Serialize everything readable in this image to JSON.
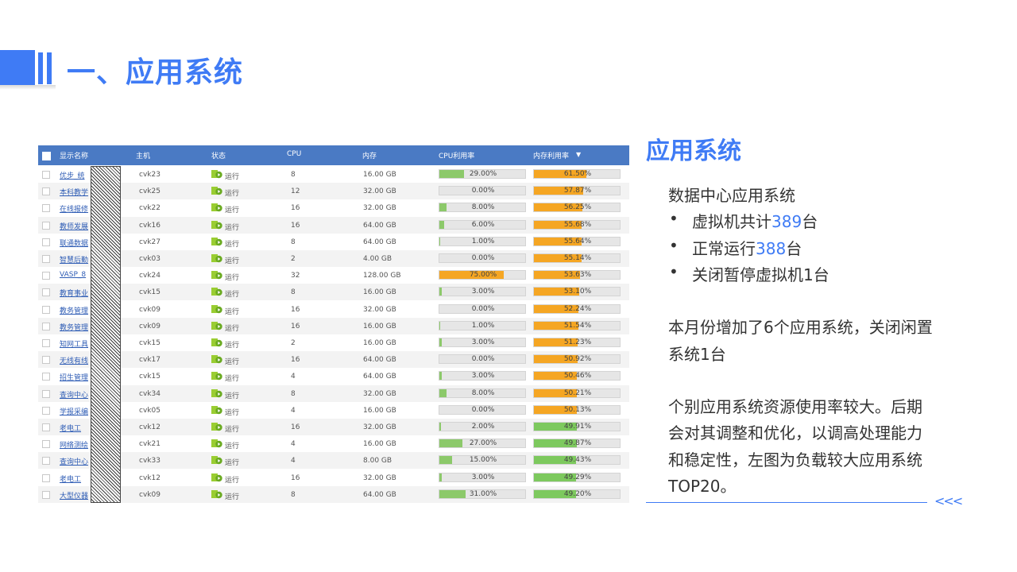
{
  "header": {
    "title": "一、应用系统"
  },
  "table": {
    "columns": [
      "显示名称",
      "主机",
      "状态",
      "CPU",
      "内存",
      "CPU利用率",
      "内存利用率"
    ],
    "rows": [
      {
        "name": "优步_统",
        "host": "cvk23",
        "status": "运行",
        "cpu": "8",
        "mem": "16.00 GB",
        "cpu_pct": 29,
        "cpu_label": "29.00%",
        "mem_pct": 61.5,
        "mem_label": "61.50%"
      },
      {
        "name": "本科教学",
        "host": "cvk25",
        "status": "运行",
        "cpu": "12",
        "mem": "32.00 GB",
        "cpu_pct": 0,
        "cpu_label": "0.00%",
        "mem_pct": 57.87,
        "mem_label": "57.87%"
      },
      {
        "name": "在线报修",
        "host": "cvk22",
        "status": "运行",
        "cpu": "16",
        "mem": "32.00 GB",
        "cpu_pct": 8,
        "cpu_label": "8.00%",
        "mem_pct": 56.25,
        "mem_label": "56.25%"
      },
      {
        "name": "教师发展",
        "host": "cvk16",
        "status": "运行",
        "cpu": "16",
        "mem": "64.00 GB",
        "cpu_pct": 6,
        "cpu_label": "6.00%",
        "mem_pct": 55.68,
        "mem_label": "55.68%"
      },
      {
        "name": "联通数据",
        "host": "cvk27",
        "status": "运行",
        "cpu": "8",
        "mem": "64.00 GB",
        "cpu_pct": 1,
        "cpu_label": "1.00%",
        "mem_pct": 55.64,
        "mem_label": "55.64%"
      },
      {
        "name": "智慧后勤",
        "host": "cvk03",
        "status": "运行",
        "cpu": "2",
        "mem": "4.00 GB",
        "cpu_pct": 0,
        "cpu_label": "0.00%",
        "mem_pct": 55.14,
        "mem_label": "55.14%"
      },
      {
        "name": "VASP_8",
        "host": "cvk24",
        "status": "运行",
        "cpu": "32",
        "mem": "128.00 GB",
        "cpu_pct": 75,
        "cpu_label": "75.00%",
        "mem_pct": 53.63,
        "mem_label": "53.63%"
      },
      {
        "name": "教育事业",
        "host": "cvk15",
        "status": "运行",
        "cpu": "8",
        "mem": "16.00 GB",
        "cpu_pct": 3,
        "cpu_label": "3.00%",
        "mem_pct": 53.1,
        "mem_label": "53.10%"
      },
      {
        "name": "教务管理",
        "host": "cvk09",
        "status": "运行",
        "cpu": "16",
        "mem": "32.00 GB",
        "cpu_pct": 0,
        "cpu_label": "0.00%",
        "mem_pct": 52.24,
        "mem_label": "52.24%"
      },
      {
        "name": "教务管理",
        "host": "cvk09",
        "status": "运行",
        "cpu": "16",
        "mem": "16.00 GB",
        "cpu_pct": 1,
        "cpu_label": "1.00%",
        "mem_pct": 51.54,
        "mem_label": "51.54%"
      },
      {
        "name": "知网工具",
        "host": "cvk15",
        "status": "运行",
        "cpu": "2",
        "mem": "16.00 GB",
        "cpu_pct": 3,
        "cpu_label": "3.00%",
        "mem_pct": 51.23,
        "mem_label": "51.23%"
      },
      {
        "name": "无线有线",
        "host": "cvk17",
        "status": "运行",
        "cpu": "16",
        "mem": "64.00 GB",
        "cpu_pct": 0,
        "cpu_label": "0.00%",
        "mem_pct": 50.92,
        "mem_label": "50.92%"
      },
      {
        "name": "招生管理",
        "host": "cvk15",
        "status": "运行",
        "cpu": "4",
        "mem": "64.00 GB",
        "cpu_pct": 3,
        "cpu_label": "3.00%",
        "mem_pct": 50.46,
        "mem_label": "50.46%"
      },
      {
        "name": "查询中心",
        "host": "cvk34",
        "status": "运行",
        "cpu": "8",
        "mem": "32.00 GB",
        "cpu_pct": 8,
        "cpu_label": "8.00%",
        "mem_pct": 50.21,
        "mem_label": "50.21%"
      },
      {
        "name": "学报采编",
        "host": "cvk05",
        "status": "运行",
        "cpu": "4",
        "mem": "16.00 GB",
        "cpu_pct": 0,
        "cpu_label": "0.00%",
        "mem_pct": 50.13,
        "mem_label": "50.13%"
      },
      {
        "name": "老电工",
        "host": "cvk12",
        "status": "运行",
        "cpu": "16",
        "mem": "32.00 GB",
        "cpu_pct": 2,
        "cpu_label": "2.00%",
        "mem_pct": 49.91,
        "mem_label": "49.91%"
      },
      {
        "name": "网络测绘",
        "host": "cvk21",
        "status": "运行",
        "cpu": "4",
        "mem": "16.00 GB",
        "cpu_pct": 27,
        "cpu_label": "27.00%",
        "mem_pct": 49.87,
        "mem_label": "49.87%"
      },
      {
        "name": "查询中心",
        "host": "cvk33",
        "status": "运行",
        "cpu": "4",
        "mem": "8.00 GB",
        "cpu_pct": 15,
        "cpu_label": "15.00%",
        "mem_pct": 49.43,
        "mem_label": "49.43%"
      },
      {
        "name": "老电工",
        "host": "cvk12",
        "status": "运行",
        "cpu": "16",
        "mem": "32.00 GB",
        "cpu_pct": 3,
        "cpu_label": "3.00%",
        "mem_pct": 49.29,
        "mem_label": "49.29%"
      },
      {
        "name": "大型仪器",
        "host": "cvk09",
        "status": "运行",
        "cpu": "8",
        "mem": "64.00 GB",
        "cpu_pct": 31,
        "cpu_label": "31.00%",
        "mem_pct": 49.2,
        "mem_label": "49.20%"
      }
    ],
    "colors": {
      "header_bg": "#4a7ac4",
      "cpu_fill": "#8cc96a",
      "mem_high": "#f5a623",
      "mem_low": "#7dc95e",
      "cpu_high": "#f5a623"
    }
  },
  "panel": {
    "title": "应用系统",
    "intro": "数据中心应用系统",
    "bullets": [
      {
        "pre": "虚拟机共计",
        "num": "389",
        "post": "台"
      },
      {
        "pre": "正常运行",
        "num": "388",
        "post": "台"
      },
      {
        "pre": "关闭暂停虚拟机1台",
        "num": "",
        "post": ""
      }
    ],
    "para1_l1": "本月份增加了6个应用系统，关闭闲置",
    "para1_l2": "系统1台",
    "para2_l1": "个别应用系统资源使用率较大。后期",
    "para2_l2": "会对其调整和优化，以调高处理能力",
    "para2_l3": "和稳定性，左图为负载较大应用系统",
    "para2_l4": "TOP20。",
    "arrows": "<<<"
  }
}
